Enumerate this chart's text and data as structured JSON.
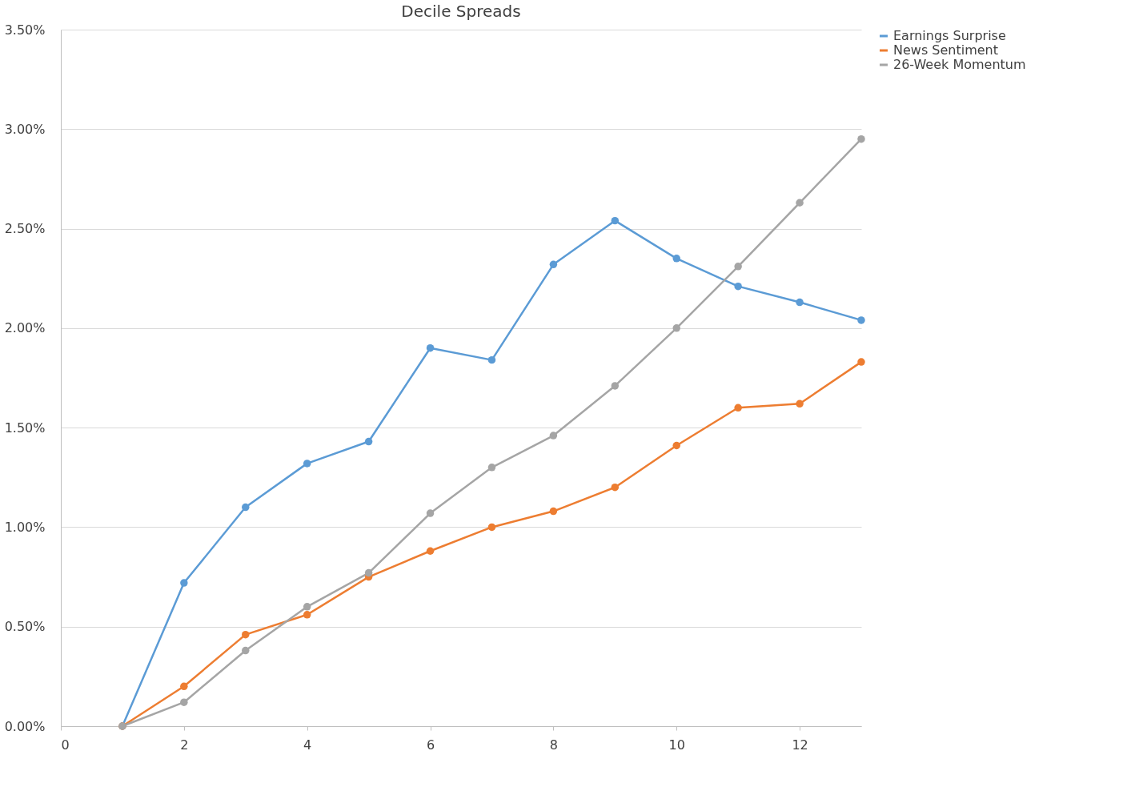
{
  "chart_data": {
    "type": "line",
    "title": "Decile Spreads",
    "x": [
      1,
      2,
      3,
      4,
      5,
      6,
      7,
      8,
      9,
      10,
      11,
      12,
      13
    ],
    "series": [
      {
        "name": "Earnings Surprise",
        "color": "#5b9bd5",
        "values": [
          0,
          0.72,
          1.1,
          1.32,
          1.43,
          1.9,
          1.84,
          2.32,
          2.54,
          2.35,
          2.21,
          2.13,
          2.04
        ]
      },
      {
        "name": "News Sentiment",
        "color": "#ed7d31",
        "values": [
          0,
          0.2,
          0.46,
          0.56,
          0.75,
          0.88,
          1.0,
          1.08,
          1.2,
          1.41,
          1.6,
          1.62,
          1.83
        ]
      },
      {
        "name": "26-Week Momentum",
        "color": "#a5a5a5",
        "values": [
          0,
          0.12,
          0.38,
          0.6,
          0.77,
          1.07,
          1.3,
          1.46,
          1.71,
          2.0,
          2.31,
          2.63,
          2.95
        ]
      }
    ],
    "xlim": [
      0,
      13
    ],
    "xticks": [
      0,
      2,
      4,
      6,
      8,
      10,
      12
    ],
    "ylim": [
      0,
      3.5
    ],
    "yticks": [
      {
        "value": 0,
        "label": "0.00%"
      },
      {
        "value": 0.5,
        "label": "0.50%"
      },
      {
        "value": 1,
        "label": "1.00%"
      },
      {
        "value": 1.5,
        "label": "1.50%"
      },
      {
        "value": 2,
        "label": "2.00%"
      },
      {
        "value": 2.5,
        "label": "2.50%"
      },
      {
        "value": 3,
        "label": "3.00%"
      },
      {
        "value": 3.5,
        "label": "3.50%"
      }
    ],
    "grid": "y",
    "legend": "right",
    "marker": "circle",
    "line_style": "solid"
  }
}
